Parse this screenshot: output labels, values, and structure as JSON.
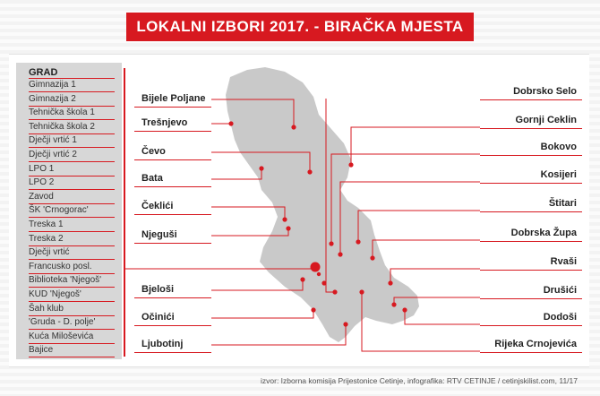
{
  "title": "LOKALNI IZBORI 2017. - BIRAČKA MJESTA",
  "grad": {
    "heading": "GRAD",
    "items": [
      "Gimnazija 1",
      "Gimnazija 2",
      "Tehnička škola 1",
      "Tehnička škola 2",
      "Dječji vrtić 1",
      "Dječji vrtić 2",
      "LPO 1",
      "LPO 2",
      "Zavod",
      "ŠK 'Crnogorac'",
      "Treska 1",
      "Treska 2",
      "Dječji vrtić",
      "Francusko posl.",
      "Biblioteka 'Njegoš'",
      "KUD 'Njegoš'",
      "Šah klub",
      "'Gruda - D. polje'",
      "Kuća Miloševića",
      "Bajice"
    ]
  },
  "left_places": [
    "Bijele Poljane",
    "Trešnjevo",
    "Čevo",
    "Bata",
    "Čeklići",
    "Njeguši",
    "Bjeloši",
    "Očinići",
    "Ljubotinj"
  ],
  "right_places": [
    "Dobrsko Selo",
    "Gornji Ceklin",
    "Bokovo",
    "Kosijeri",
    "Štitari",
    "Dobrska Župa",
    "Rvaši",
    "Drušići",
    "Dodoši",
    "Rijeka Crnojevića"
  ],
  "footer": "izvor: Izborna komisija Prijestonice Cetinje, infografika: RTV CETINJE / cetinjskilist.com, 11/17",
  "colors": {
    "accent": "#d71920",
    "map_fill": "#c9c9c9",
    "grad_bg": "#d7d7d7"
  },
  "icons": {
    "marker": "red-dot-icon",
    "city_marker": "large-red-dot-icon"
  }
}
